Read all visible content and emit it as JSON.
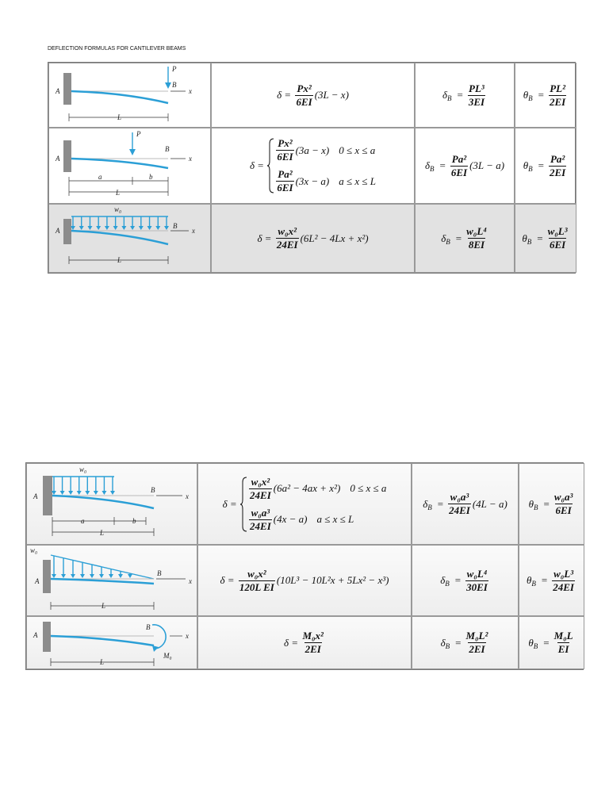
{
  "title": "DEFLECTION FORMULAS FOR CANTILEVER BEAMS",
  "tables": [
    {
      "rows": [
        {
          "diagram": {
            "labels": [
              "A",
              "P",
              "B",
              "x",
              "L"
            ]
          },
          "deflection": {
            "lhs": "δ",
            "eq": "=",
            "num": "Px²",
            "den": "6EI",
            "tail": "(3L − x)"
          },
          "delta_b": {
            "lhs": "δ",
            "sub": "B",
            "eq": "=",
            "num": "PL³",
            "den": "3EI"
          },
          "theta_b": {
            "lhs": "θ",
            "sub": "B",
            "eq": "=",
            "num": "PL²",
            "den": "2EI"
          }
        },
        {
          "diagram": {
            "labels": [
              "A",
              "P",
              "B",
              "x",
              "a",
              "b",
              "L"
            ]
          },
          "deflection": {
            "lhs": "δ",
            "eq": "=",
            "cases": [
              {
                "num": "Px²",
                "den": "6EI",
                "tail": "(3a − x)",
                "range": "0 ≤ x ≤ a"
              },
              {
                "num": "Pa²",
                "den": "6EI",
                "tail": "(3x − a)",
                "range": "a ≤ x ≤ L"
              }
            ]
          },
          "delta_b": {
            "lhs": "δ",
            "sub": "B",
            "eq": "=",
            "num": "Pa²",
            "den": "6EI",
            "tail": "(3L − a)"
          },
          "theta_b": {
            "lhs": "θ",
            "sub": "B",
            "eq": "=",
            "num": "Pa²",
            "den": "2EI"
          }
        },
        {
          "diagram": {
            "labels": [
              "w₀",
              "A",
              "B",
              "x",
              "L"
            ]
          },
          "deflection": {
            "lhs": "δ",
            "eq": "=",
            "num": "w₀x²",
            "den": "24EI",
            "tail": "(6L² − 4Lx + x²)"
          },
          "delta_b": {
            "lhs": "δ",
            "sub": "B",
            "eq": "=",
            "num": "w₀L⁴",
            "den": "8EI"
          },
          "theta_b": {
            "lhs": "θ",
            "sub": "B",
            "eq": "=",
            "num": "w₀L³",
            "den": "6EI"
          }
        }
      ]
    },
    {
      "rows": [
        {
          "diagram": {
            "labels": [
              "w₀",
              "A",
              "B",
              "x",
              "a",
              "b",
              "L"
            ]
          },
          "deflection": {
            "lhs": "δ",
            "eq": "=",
            "cases": [
              {
                "num": "w₀x²",
                "den": "24EI",
                "tail": "(6a² − 4ax + x²)",
                "range": "0 ≤ x ≤ a"
              },
              {
                "num": "w₀a³",
                "den": "24EI",
                "tail": "(4x − a)",
                "range": "a ≤ x ≤ L"
              }
            ]
          },
          "delta_b": {
            "lhs": "δ",
            "sub": "B",
            "eq": "=",
            "num": "w₀a³",
            "den": "24EI",
            "tail": "(4L − a)"
          },
          "theta_b": {
            "lhs": "θ",
            "sub": "B",
            "eq": "=",
            "num": "w₀a³",
            "den": "6EI"
          }
        },
        {
          "diagram": {
            "labels": [
              "w₀",
              "A",
              "B",
              "x",
              "L"
            ]
          },
          "deflection": {
            "lhs": "δ",
            "eq": "=",
            "num": "w₀x²",
            "den": "120L EI",
            "tail": "(10L³ − 10L²x + 5Lx² − x³)"
          },
          "delta_b": {
            "lhs": "δ",
            "sub": "B",
            "eq": "=",
            "num": "w₀L⁴",
            "den": "30EI"
          },
          "theta_b": {
            "lhs": "θ",
            "sub": "B",
            "eq": "=",
            "num": "w₀L³",
            "den": "24EI"
          }
        },
        {
          "diagram": {
            "labels": [
              "A",
              "B",
              "x",
              "M₀",
              "L"
            ]
          },
          "deflection": {
            "lhs": "δ",
            "eq": "=",
            "num": "M₀x²",
            "den": "2EI"
          },
          "delta_b": {
            "lhs": "δ",
            "sub": "B",
            "eq": "=",
            "num": "M₀L²",
            "den": "2EI"
          },
          "theta_b": {
            "lhs": "θ",
            "sub": "B",
            "eq": "=",
            "num": "M₀L",
            "den": "EI"
          }
        }
      ]
    }
  ]
}
